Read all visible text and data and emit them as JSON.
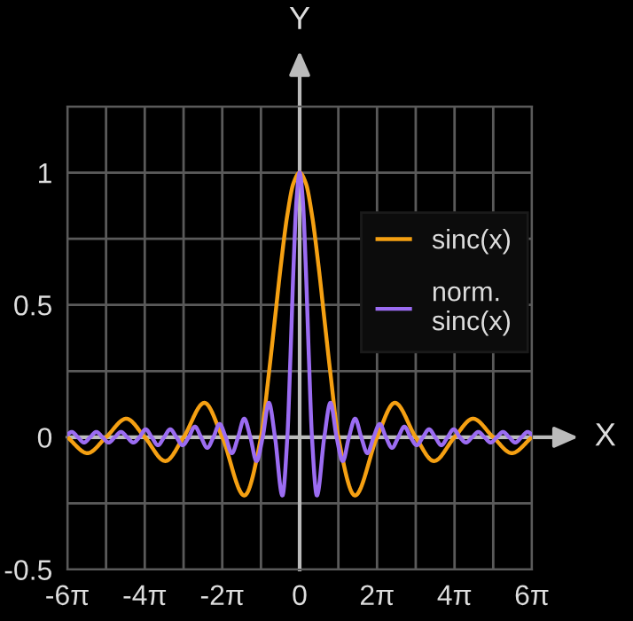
{
  "chart_data": {
    "type": "line",
    "xlabel": "X",
    "ylabel": "Y",
    "xlim": [
      -18.85,
      18.85
    ],
    "ylim": [
      -0.5,
      1.25
    ],
    "xticks": [
      {
        "value": -18.85,
        "label": "-6π"
      },
      {
        "value": -15.71,
        "label": null
      },
      {
        "value": -12.57,
        "label": "-4π"
      },
      {
        "value": -9.42,
        "label": null
      },
      {
        "value": -6.28,
        "label": "-2π"
      },
      {
        "value": -3.14,
        "label": null
      },
      0,
      {
        "value": 3.14,
        "label": null
      },
      {
        "value": 6.28,
        "label": "2π"
      },
      {
        "value": 9.42,
        "label": null
      },
      {
        "value": 12.57,
        "label": "4π"
      },
      {
        "value": 15.71,
        "label": null
      },
      {
        "value": 18.85,
        "label": "6π"
      }
    ],
    "yticks": [
      -0.5,
      {
        "value": -0.25,
        "label": null
      },
      0,
      {
        "value": 0.25,
        "label": null
      },
      0.5,
      {
        "value": 0.75,
        "label": null
      },
      1,
      {
        "value": 1.25,
        "label": null
      }
    ],
    "grid": true,
    "legend": "top right",
    "marker": "none",
    "line_style": "solid",
    "series": [
      {
        "name": "sinc(x)",
        "color": "#f5a012",
        "x": [
          -18.85,
          -17.22,
          -15.71,
          -14.07,
          -12.57,
          -10.9,
          -9.42,
          -7.73,
          -6.28,
          -4.49,
          -3.14,
          -2.5,
          -2,
          -1.5,
          -1,
          -0.5,
          0,
          0.5,
          1,
          1.5,
          2,
          2.5,
          3.14,
          4.49,
          6.28,
          7.73,
          9.42,
          10.9,
          12.57,
          14.07,
          15.71,
          17.22,
          18.85
        ],
        "values": [
          0,
          -0.06,
          0,
          0.07,
          0,
          -0.09,
          0,
          0.13,
          0,
          -0.22,
          0,
          0.24,
          0.45,
          0.66,
          0.84,
          0.96,
          1,
          0.96,
          0.84,
          0.66,
          0.45,
          0.24,
          0,
          -0.22,
          0,
          0.13,
          0,
          -0.09,
          0,
          0.07,
          0,
          -0.06,
          0
        ]
      },
      {
        "name": "norm.\nsinc(x)",
        "color": "#9b6cf2",
        "x": [
          -18.85,
          -18.5,
          -18,
          -17.5,
          -17,
          -16.5,
          -16,
          -15.5,
          -15,
          -14.5,
          -14,
          -13.5,
          -13,
          -12.5,
          -12,
          -11.5,
          -11,
          -10.5,
          -10,
          -9.5,
          -9,
          -8.5,
          -8,
          -7.5,
          -7,
          -6.5,
          -6,
          -5.5,
          -5,
          -4.5,
          -4,
          -3.5,
          -3,
          -2.5,
          -2,
          -1.4,
          -1,
          -0.75,
          -0.5,
          -0.25,
          0,
          0.25,
          0.5,
          0.75,
          1,
          1.4,
          2,
          2.5,
          3,
          3.5,
          4,
          4.5,
          5,
          5.5,
          6,
          6.5,
          7,
          7.5,
          8,
          8.5,
          9,
          9.5,
          10,
          10.5,
          11,
          11.5,
          12,
          12.5,
          13,
          13.5,
          14,
          14.5,
          15,
          15.5,
          16,
          16.5,
          17,
          17.5,
          18,
          18.5,
          18.85
        ],
        "values": [
          0.01,
          0.02,
          0,
          -0.02,
          0,
          0.02,
          0,
          -0.02,
          0,
          0.02,
          0,
          -0.02,
          0,
          0.03,
          0,
          -0.03,
          0,
          0.03,
          0,
          -0.03,
          0,
          0.04,
          0,
          -0.04,
          0,
          0.05,
          0,
          -0.06,
          0,
          0.07,
          0,
          -0.09,
          0,
          0.13,
          0,
          -0.22,
          0,
          0.3,
          0.64,
          0.9,
          1,
          0.9,
          0.64,
          0.3,
          0,
          -0.22,
          0,
          0.13,
          0,
          -0.09,
          0,
          0.07,
          0,
          -0.06,
          0,
          0.05,
          0,
          -0.04,
          0,
          0.04,
          0,
          -0.03,
          0,
          0.03,
          0,
          -0.03,
          0,
          0.03,
          0,
          -0.02,
          0,
          0.02,
          0,
          -0.02,
          0,
          0.02,
          0,
          -0.02,
          0,
          0.02,
          0.01
        ]
      }
    ]
  }
}
